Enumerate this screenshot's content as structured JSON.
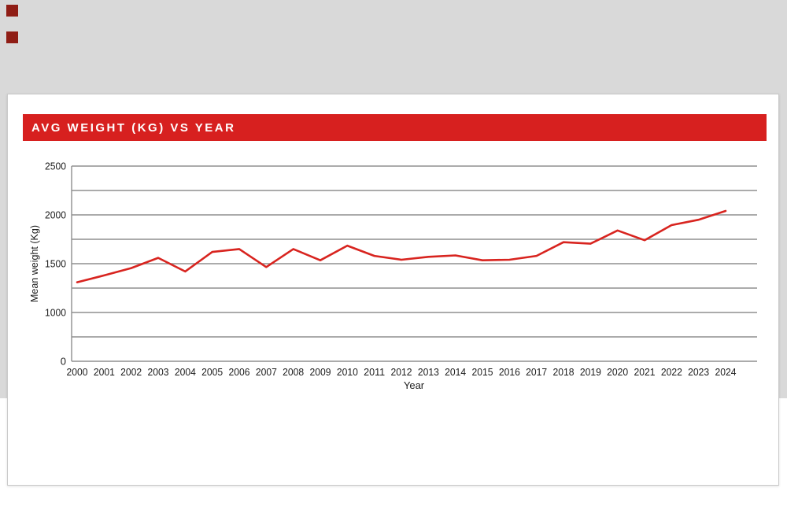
{
  "page": {
    "background_color": "#ffffff",
    "band_color": "#d9d9d9",
    "marker_color": "#8f1d15"
  },
  "card": {
    "title": "AVG WEIGHT (KG) VS YEAR",
    "title_bg": "#d7201f",
    "title_color": "#ffffff",
    "border_color": "#c9c9c9"
  },
  "chart_data": {
    "type": "line",
    "title": "AVG WEIGHT (KG) VS YEAR",
    "xlabel": "Year",
    "ylabel": "Mean weight (Kg)",
    "categories": [
      "2000",
      "2001",
      "2002",
      "2003",
      "2004",
      "2005",
      "2006",
      "2007",
      "2008",
      "2009",
      "2010",
      "2011",
      "2012",
      "2013",
      "2014",
      "2015",
      "2016",
      "2017",
      "2018",
      "2019",
      "2020",
      "2021",
      "2022",
      "2023",
      "2024"
    ],
    "values": [
      1310,
      1380,
      1455,
      1560,
      1420,
      1620,
      1650,
      1465,
      1650,
      1535,
      1685,
      1580,
      1540,
      1570,
      1585,
      1535,
      1540,
      1580,
      1720,
      1705,
      1840,
      1740,
      1895,
      1950,
      2040
    ],
    "series_color": "#d8241f",
    "gridline_color": "#8f8f8f",
    "gridline_values": [
      2500,
      2250,
      2000,
      1750,
      1500,
      1250,
      1000,
      500,
      0
    ],
    "y_tick_labels": [
      "2500",
      "",
      "2000",
      "",
      "1500",
      "",
      "1000",
      "",
      "0"
    ],
    "ylim": [
      0,
      2500
    ],
    "grid": "horizontal-only",
    "legend": "none"
  }
}
